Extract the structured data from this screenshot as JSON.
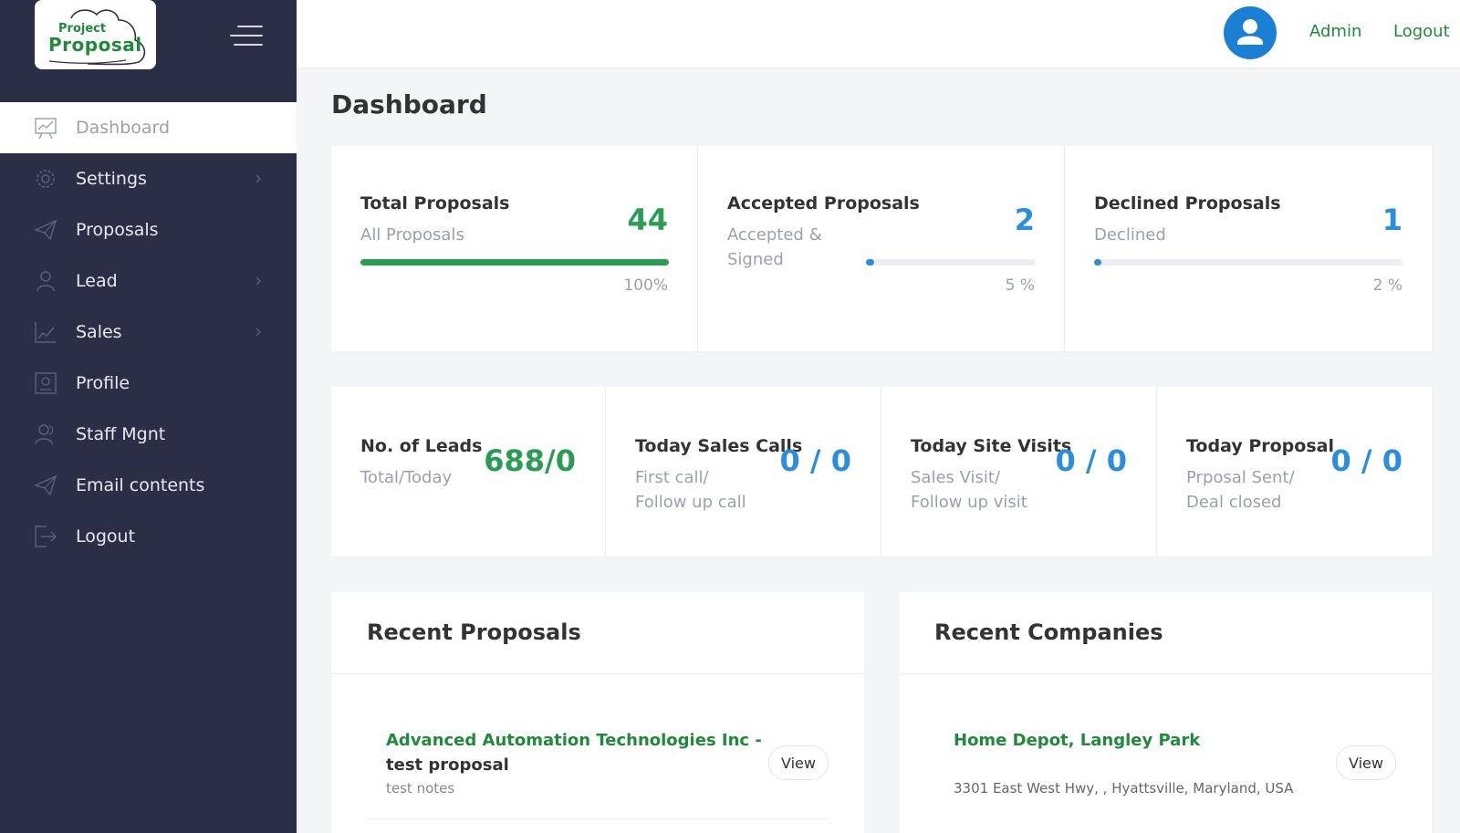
{
  "brand": {
    "logo_line1": "Project",
    "logo_line2": "Proposal"
  },
  "sidebar": {
    "items": [
      {
        "label": "Dashboard",
        "icon": "chart-board-icon",
        "active": true
      },
      {
        "label": "Settings",
        "icon": "gear-icon",
        "chevron": true
      },
      {
        "label": "Proposals",
        "icon": "paper-plane-icon"
      },
      {
        "label": "Lead",
        "icon": "user-icon",
        "chevron": true
      },
      {
        "label": "Sales",
        "icon": "line-chart-icon",
        "chevron": true
      },
      {
        "label": "Profile",
        "icon": "id-card-icon"
      },
      {
        "label": "Staff Mgnt",
        "icon": "users-icon"
      },
      {
        "label": "Email contents",
        "icon": "paper-plane-icon"
      },
      {
        "label": "Logout",
        "icon": "logout-icon"
      }
    ]
  },
  "header": {
    "admin_label": "Admin",
    "logout_label": "Logout"
  },
  "page": {
    "title": "Dashboard"
  },
  "proposal_stats": [
    {
      "title": "Total Proposals",
      "sub1": "All Proposals",
      "sub2": "",
      "value": "44",
      "percent_label": "100%",
      "progress": 1.0,
      "color": "#2a9d55"
    },
    {
      "title": "Accepted Proposals",
      "sub1": "Accepted &",
      "sub2": "Signed",
      "value": "2",
      "percent_label": "5 %",
      "progress": 0.05,
      "color": "#2a8de0"
    },
    {
      "title": "Declined Proposals",
      "sub1": "Declined",
      "sub2": "",
      "value": "1",
      "percent_label": "2 %",
      "progress": 0.02,
      "color": "#2a8de0"
    }
  ],
  "lead_stats": [
    {
      "title": "No. of Leads",
      "sub1": "Total/Today",
      "sub2": "",
      "value": "688/0",
      "color": "#2a9d55"
    },
    {
      "title": "Today Sales Calls",
      "sub1": "First call/",
      "sub2": "Follow up call",
      "value": "0 / 0",
      "color": "#2a8de0"
    },
    {
      "title": "Today Site Visits",
      "sub1": "Sales Visit/",
      "sub2": "Follow up visit",
      "value": "0 / 0",
      "color": "#2a8de0"
    },
    {
      "title": "Today Proposal",
      "sub1": "Prposal Sent/",
      "sub2": "Deal closed",
      "value": "0 / 0",
      "color": "#2a8de0"
    }
  ],
  "recent_proposals": {
    "title": "Recent Proposals",
    "item": {
      "title_green": "Advanced Automation Technologies Inc -",
      "title_dark": "test proposal",
      "note": "test notes",
      "button": "View"
    }
  },
  "recent_companies": {
    "title": "Recent Companies",
    "item": {
      "name": "Home Depot, Langley Park",
      "address": "3301 East West Hwy, , Hyattsville, Maryland, USA",
      "button": "View"
    }
  }
}
